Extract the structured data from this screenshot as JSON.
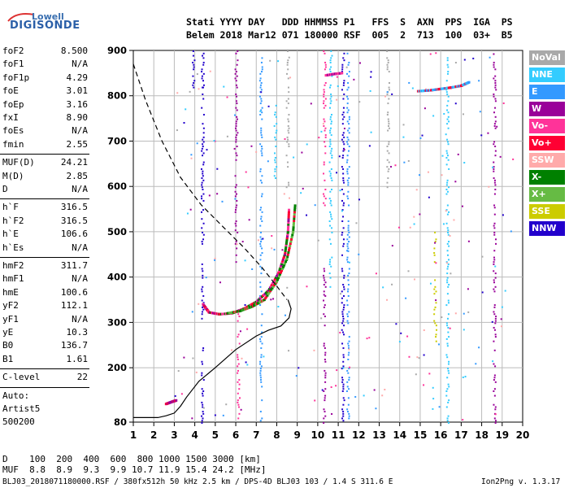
{
  "logo": {
    "line1": "Lowell",
    "line2": "DIGISONDE"
  },
  "header": {
    "labels": "Stati YYYY DAY   DDD HHMMSS P1   FFS  S  AXN  PPS  IGA  PS",
    "values": "Belem 2018 Mar12 071 180000 RSF  005  2  713  100  03+  B5"
  },
  "params": {
    "group1": [
      {
        "k": "foF2",
        "v": "8.500"
      },
      {
        "k": "foF1",
        "v": "N/A"
      },
      {
        "k": "foF1p",
        "v": "4.29"
      },
      {
        "k": "foE",
        "v": "3.01"
      },
      {
        "k": "foEp",
        "v": "3.16"
      },
      {
        "k": "fxI",
        "v": "8.90"
      },
      {
        "k": "foEs",
        "v": "N/A"
      },
      {
        "k": "fmin",
        "v": "2.55"
      }
    ],
    "group2": [
      {
        "k": "MUF(D)",
        "v": "24.21"
      },
      {
        "k": "M(D)",
        "v": "2.85"
      },
      {
        "k": "D",
        "v": "N/A"
      }
    ],
    "group3": [
      {
        "k": "h`F",
        "v": "316.5"
      },
      {
        "k": "h`F2",
        "v": "316.5"
      },
      {
        "k": "h`E",
        "v": "106.6"
      },
      {
        "k": "h`Es",
        "v": "N/A"
      }
    ],
    "group4": [
      {
        "k": "hmF2",
        "v": "311.7"
      },
      {
        "k": "hmF1",
        "v": "N/A"
      },
      {
        "k": "hmE",
        "v": "100.6"
      },
      {
        "k": "yF2",
        "v": "112.1"
      },
      {
        "k": "yF1",
        "v": "N/A"
      },
      {
        "k": "yE",
        "v": "10.3"
      },
      {
        "k": "B0",
        "v": "136.7"
      },
      {
        "k": "B1",
        "v": "1.61"
      }
    ],
    "clevel": {
      "k": "C-level",
      "v": "22"
    },
    "auto_label": "Auto:",
    "artist": "Artist5",
    "code": "500200"
  },
  "legend": [
    {
      "label": "NoVal",
      "color": "#a9a9a9"
    },
    {
      "label": "NNE",
      "color": "#33ccff"
    },
    {
      "label": "E",
      "color": "#3399ff"
    },
    {
      "label": "W",
      "color": "#990099"
    },
    {
      "label": "Vo-",
      "color": "#ff3399"
    },
    {
      "label": "Vo+",
      "color": "#ff0033"
    },
    {
      "label": "SSW",
      "color": "#ffaaaa"
    },
    {
      "label": "X-",
      "color": "#008000"
    },
    {
      "label": "X+",
      "color": "#66bb44"
    },
    {
      "label": "SSE",
      "color": "#cccc00"
    },
    {
      "label": "NNW",
      "color": "#2200cc"
    }
  ],
  "footer": {
    "d_row": "D    100  200  400  600  800 1000 1500 3000 [km]",
    "muf_row": "MUF  8.8  8.9  9.3  9.9 10.7 11.9 15.4 24.2 [MHz]",
    "file": "BLJ03_2018071180000.RSF / 380fx512h 50 kHz 2.5 km / DPS-4D BLJ03 103 / 1.4 S 311.6 E",
    "version": "Ion2Png v. 1.3.17"
  },
  "chart_data": {
    "type": "scatter",
    "xlim": [
      1,
      20
    ],
    "ylim": [
      80,
      900
    ],
    "x_ticks": [
      1,
      2,
      3,
      4,
      5,
      6,
      7,
      8,
      9,
      10,
      11,
      12,
      13,
      14,
      15,
      16,
      17,
      18,
      19,
      20
    ],
    "y_ticks": [
      80,
      200,
      300,
      400,
      500,
      600,
      700,
      800,
      900
    ],
    "grid": true,
    "vertical_streaks": [
      {
        "f": 3.9,
        "y0": 820,
        "y1": 900,
        "color": "#2200cc"
      },
      {
        "f": 4.35,
        "y0": 300,
        "y1": 900,
        "color": "#2200cc"
      },
      {
        "f": 4.35,
        "y0": 80,
        "y1": 250,
        "color": "#2200cc"
      },
      {
        "f": 6.0,
        "y0": 430,
        "y1": 900,
        "color": "#990099"
      },
      {
        "f": 6.1,
        "y0": 80,
        "y1": 330,
        "color": "#ff3399"
      },
      {
        "f": 7.2,
        "y0": 80,
        "y1": 900,
        "color": "#3399ff"
      },
      {
        "f": 7.9,
        "y0": 620,
        "y1": 780,
        "color": "#33ccff"
      },
      {
        "f": 8.5,
        "y0": 600,
        "y1": 900,
        "color": "#a9a9a9"
      },
      {
        "f": 10.3,
        "y0": 560,
        "y1": 900,
        "color": "#ff3399"
      },
      {
        "f": 10.3,
        "y0": 80,
        "y1": 420,
        "color": "#990099"
      },
      {
        "f": 10.6,
        "y0": 380,
        "y1": 900,
        "color": "#33ccff"
      },
      {
        "f": 11.2,
        "y0": 80,
        "y1": 900,
        "color": "#2200cc"
      },
      {
        "f": 11.45,
        "y0": 80,
        "y1": 900,
        "color": "#3399ff"
      },
      {
        "f": 13.4,
        "y0": 600,
        "y1": 900,
        "color": "#a9a9a9"
      },
      {
        "f": 15.7,
        "y0": 250,
        "y1": 500,
        "color": "#cccc00"
      },
      {
        "f": 16.3,
        "y0": 80,
        "y1": 900,
        "color": "#33ccff"
      },
      {
        "f": 18.6,
        "y0": 80,
        "y1": 880,
        "color": "#990099"
      }
    ],
    "o_trace": [
      [
        4.4,
        340
      ],
      [
        4.7,
        322
      ],
      [
        5.2,
        318
      ],
      [
        5.8,
        320
      ],
      [
        6.4,
        330
      ],
      [
        7.0,
        345
      ],
      [
        7.6,
        370
      ],
      [
        8.1,
        410
      ],
      [
        8.4,
        450
      ],
      [
        8.55,
        500
      ],
      [
        8.6,
        550
      ]
    ],
    "x_trace": [
      [
        5.6,
        320
      ],
      [
        6.2,
        325
      ],
      [
        6.8,
        335
      ],
      [
        7.4,
        350
      ],
      [
        8.0,
        390
      ],
      [
        8.5,
        440
      ],
      [
        8.8,
        500
      ],
      [
        8.9,
        560
      ]
    ],
    "e_trace": [
      [
        2.6,
        120
      ],
      [
        2.9,
        125
      ],
      [
        3.1,
        128
      ]
    ],
    "high_trace": [
      [
        14.9,
        810
      ],
      [
        15.5,
        812
      ],
      [
        16.0,
        815
      ],
      [
        16.5,
        818
      ],
      [
        17.0,
        822
      ],
      [
        17.4,
        830
      ]
    ],
    "high_trace2": [
      [
        10.4,
        845
      ],
      [
        10.8,
        848
      ],
      [
        11.2,
        850
      ]
    ],
    "profile_solid": [
      [
        1,
        90
      ],
      [
        2.2,
        90
      ],
      [
        2.6,
        94
      ],
      [
        3.0,
        100
      ],
      [
        3.3,
        115
      ],
      [
        3.6,
        135
      ],
      [
        4.2,
        170
      ],
      [
        5.0,
        200
      ],
      [
        6.0,
        240
      ],
      [
        7.0,
        270
      ],
      [
        7.6,
        283
      ],
      [
        8.2,
        292
      ],
      [
        8.6,
        310
      ],
      [
        8.7,
        330
      ],
      [
        8.55,
        350
      ]
    ],
    "profile_dashed": [
      [
        1,
        870
      ],
      [
        1.6,
        790
      ],
      [
        2.4,
        700
      ],
      [
        3.3,
        620
      ],
      [
        4.3,
        560
      ],
      [
        5.4,
        510
      ],
      [
        6.4,
        465
      ],
      [
        7.3,
        420
      ],
      [
        8.0,
        380
      ],
      [
        8.5,
        350
      ]
    ]
  }
}
